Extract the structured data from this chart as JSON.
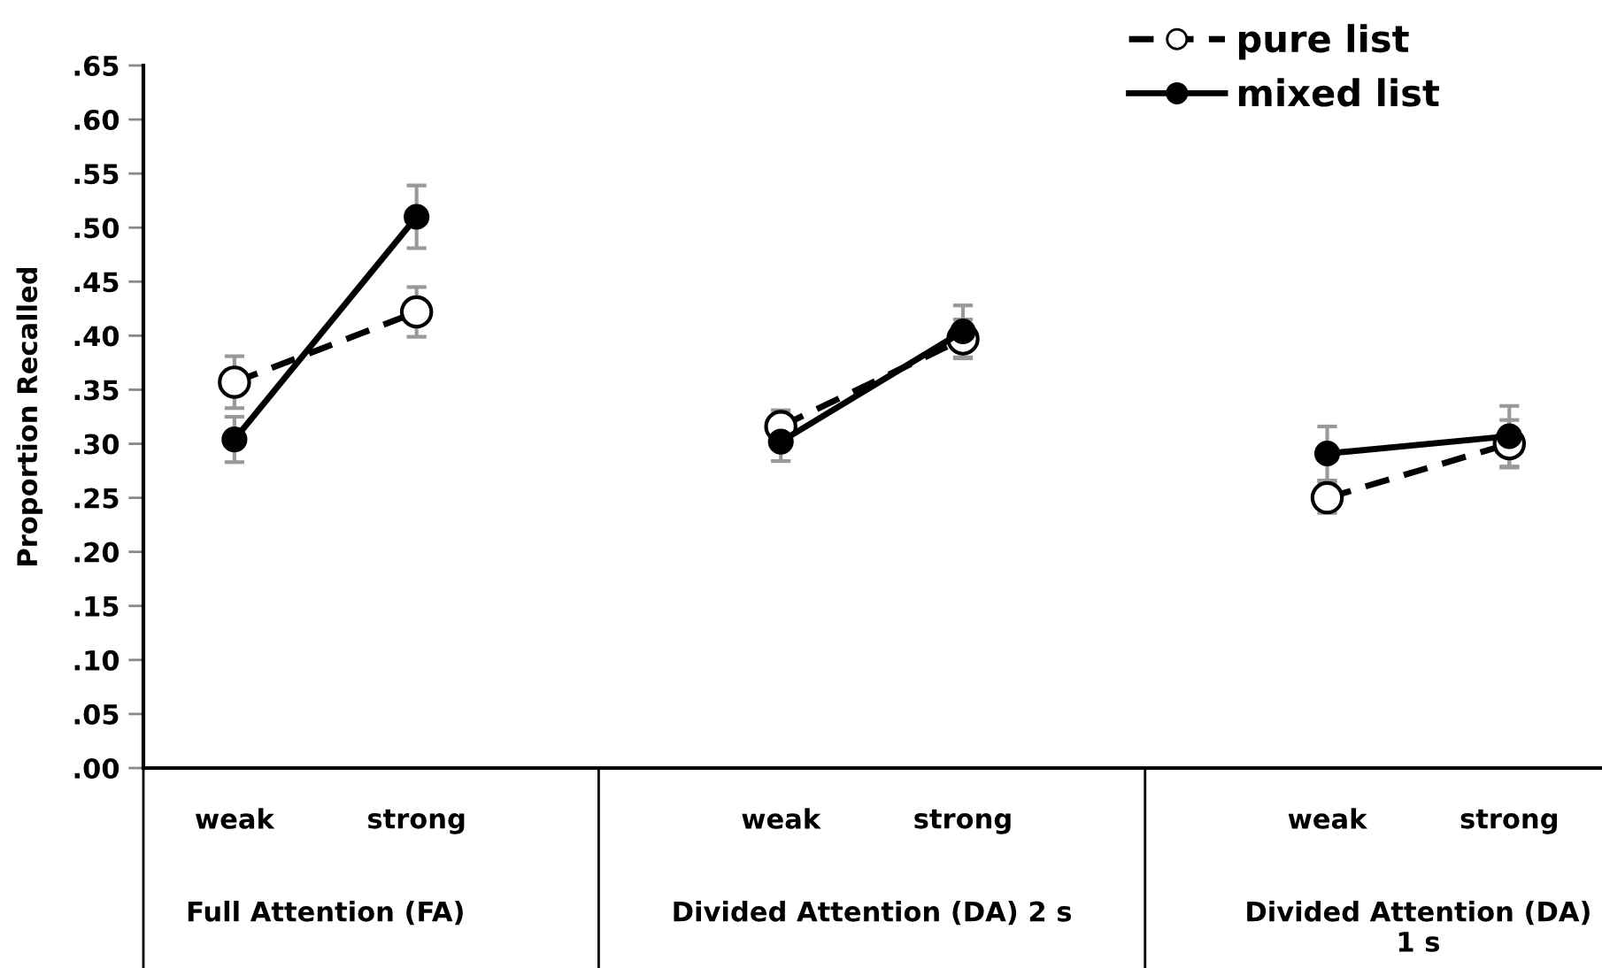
{
  "chart_data": {
    "type": "line",
    "ylabel": "Proportion Recalled",
    "categories": [
      "weak",
      "strong",
      null,
      "weak",
      "strong",
      null,
      "weak",
      "strong"
    ],
    "series": [
      {
        "name": "pure list",
        "color": "#000000",
        "line_style": "dashed",
        "values": [
          0.357,
          0.422,
          null,
          0.316,
          0.397,
          null,
          0.25,
          0.3
        ],
        "errors": [
          0.024,
          0.023,
          null,
          0.015,
          0.018,
          null,
          0.014,
          0.022
        ]
      },
      {
        "name": "mixed list",
        "color": "#000000",
        "line_style": "solid",
        "values": [
          0.304,
          0.51,
          null,
          0.302,
          0.404,
          null,
          0.291,
          0.307
        ],
        "errors": [
          0.021,
          0.029,
          null,
          0.018,
          0.024,
          null,
          0.025,
          0.028
        ]
      }
    ],
    "annotations": [
      "Full Attention (FA)",
      "Divided Attention (DA) 2 s",
      "Divided Attention (DA) 1 s"
    ],
    "ylim": [
      0,
      0.65
    ],
    "yticks": [
      {
        "value": 0,
        "label": ".00"
      },
      {
        "value": 0.05,
        "label": ".05"
      },
      {
        "value": 0.1,
        "label": ".10"
      },
      {
        "value": 0.15,
        "label": ".15"
      },
      {
        "value": 0.2,
        "label": ".20"
      },
      {
        "value": 0.25,
        "label": ".25"
      },
      {
        "value": 0.3,
        "label": ".30"
      },
      {
        "value": 0.35,
        "label": ".35"
      },
      {
        "value": 0.4,
        "label": ".40"
      },
      {
        "value": 0.45,
        "label": ".45"
      },
      {
        "value": 0.5,
        "label": ".50"
      },
      {
        "value": 0.55,
        "label": ".55"
      },
      {
        "value": 0.6,
        "label": ".60"
      },
      {
        "value": 0.65,
        "label": ".65"
      }
    ],
    "marker": "circle",
    "grid": false,
    "legend": "top right"
  }
}
